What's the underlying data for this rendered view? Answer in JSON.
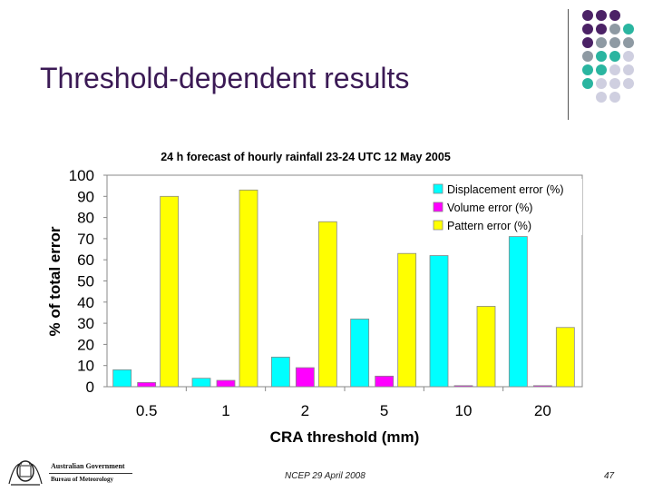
{
  "slide": {
    "title": "Threshold-dependent results",
    "footer_date": "NCEP 29 April 2008",
    "page_number": "47",
    "logo": {
      "line1": "Australian Government",
      "line2": "Bureau of Meteorology"
    }
  },
  "colors": {
    "purple": "#4b2266",
    "teal": "#2ab5a0",
    "gray": "#8e9aa3",
    "light": "#cfcfe0",
    "displacement": "#00ffff",
    "volume": "#ff00ff",
    "pattern": "#ffff00"
  },
  "chart_data": {
    "type": "bar",
    "title": "24 h forecast of hourly rainfall  23-24 UTC 12 May 2005",
    "xlabel": "CRA threshold (mm)",
    "ylabel": "% of total error",
    "categories": [
      "0.5",
      "1",
      "2",
      "5",
      "10",
      "20"
    ],
    "ylim": [
      0,
      100
    ],
    "yticks": [
      0,
      10,
      20,
      30,
      40,
      50,
      60,
      70,
      80,
      90,
      100
    ],
    "legend_position": "top-right",
    "series": [
      {
        "name": "Displacement error (%)",
        "color": "#00ffff",
        "values": [
          8,
          4,
          14,
          32,
          62,
          71
        ]
      },
      {
        "name": "Volume error (%)",
        "color": "#ff00ff",
        "values": [
          2,
          3,
          9,
          5,
          0.5,
          0.5
        ]
      },
      {
        "name": "Pattern error (%)",
        "color": "#ffff00",
        "values": [
          90,
          93,
          78,
          63,
          38,
          28
        ]
      }
    ]
  }
}
